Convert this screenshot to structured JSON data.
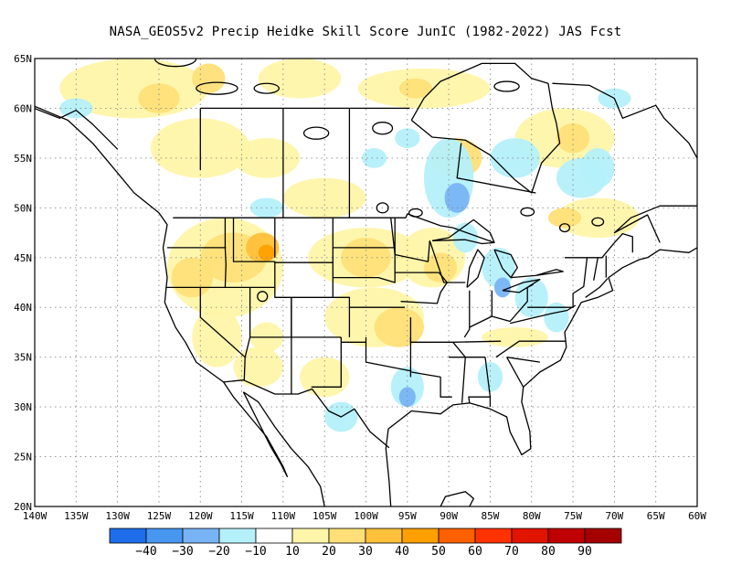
{
  "title": "NASA_GEOS5v2 Precip Heidke Skill Score JunIC (1982-2022) JAS Fcst",
  "x_axis_labels": [
    "140W",
    "135W",
    "130W",
    "125W",
    "120W",
    "115W",
    "110W",
    "105W",
    "100W",
    "95W",
    "90W",
    "85W",
    "80W",
    "75W",
    "70W",
    "65W",
    "60W"
  ],
  "y_axis_labels": [
    "20N",
    "25N",
    "30N",
    "35N",
    "40N",
    "45N",
    "50N",
    "55N",
    "60N",
    "65N"
  ],
  "lon_range": [
    -140,
    -60
  ],
  "lat_range": [
    20,
    65
  ],
  "colorbar": {
    "colors": [
      "#1e6eeb",
      "#4796f0",
      "#78b4f5",
      "#b4f0fa",
      "#ffffff",
      "#fff5aa",
      "#ffe078",
      "#ffc03c",
      "#ffa000",
      "#ff6000",
      "#ff3200",
      "#e11400",
      "#c00000",
      "#a50000"
    ],
    "labels": [
      "−40",
      "−30",
      "−20",
      "−10",
      "10",
      "20",
      "30",
      "40",
      "50",
      "60",
      "70",
      "80",
      "90"
    ]
  },
  "legend_colors": {
    "neg_light": "#b4f0fa",
    "neg_mid": "#78b4f5",
    "pos_light": "#fff5aa",
    "pos_mid": "#ffe078",
    "pos_strong": "#ffc03c",
    "pos_deep": "#ffa000"
  }
}
